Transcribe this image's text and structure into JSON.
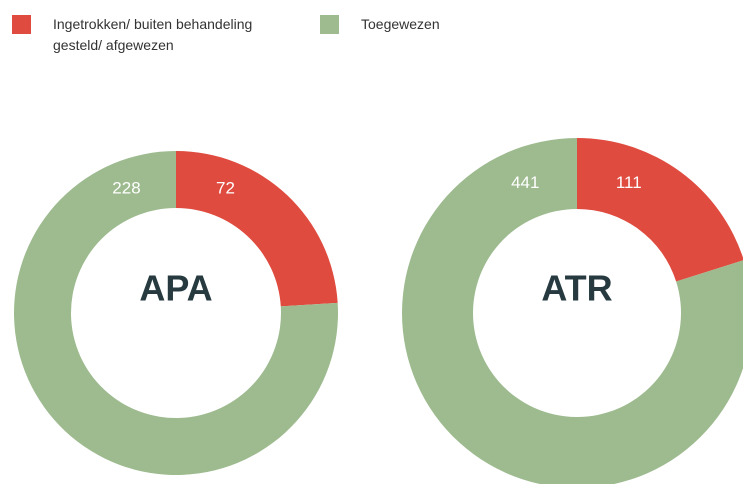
{
  "legend": [
    {
      "label": "Ingetrokken/ buiten behandeling gesteld/ afgewezen",
      "color": "#e04b3f"
    },
    {
      "label": "Toegewezen",
      "color": "#9dbb8f"
    }
  ],
  "chart_data": [
    {
      "type": "pie",
      "title": "APA",
      "categories": [
        "Ingetrokken/ buiten behandeling gesteld/ afgewezen",
        "Toegewezen"
      ],
      "values": [
        72,
        228
      ],
      "colors": [
        "#e04b3f",
        "#9dbb8f"
      ]
    },
    {
      "type": "pie",
      "title": "ATR",
      "categories": [
        "Ingetrokken/ buiten behandeling gesteld/ afgewezen",
        "Toegewezen"
      ],
      "values": [
        111,
        441
      ],
      "colors": [
        "#e04b3f",
        "#9dbb8f"
      ]
    }
  ]
}
